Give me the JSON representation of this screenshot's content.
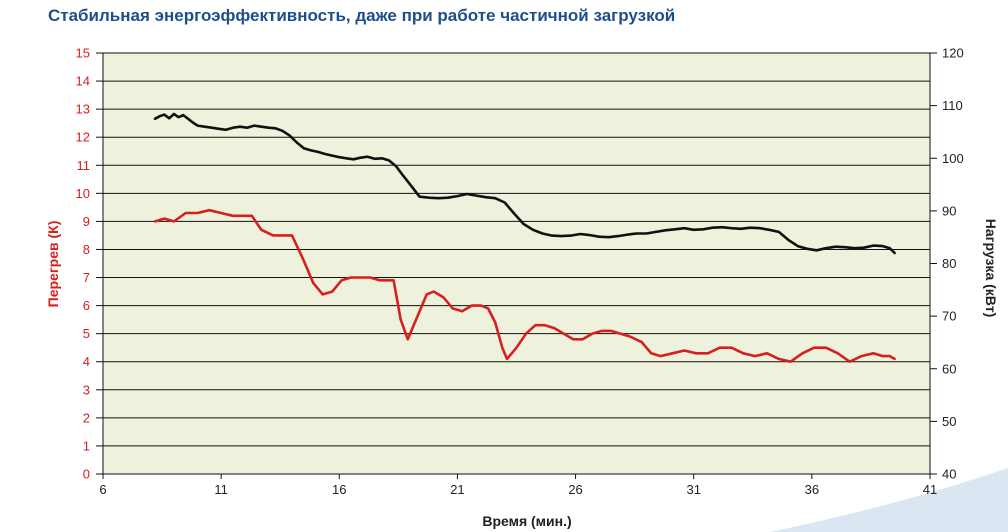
{
  "title": "Стабильная энергоэффективность, даже при работе частичной загрузкой",
  "colors": {
    "plot_bg": "#eef2dc",
    "title": "#1f4e8c",
    "superheat_line": "#d62020",
    "load_line": "#111111",
    "grid": "#111111",
    "corner_decoration": "#dbe6f3"
  },
  "chart_data": {
    "type": "line",
    "title": "Стабильная энергоэффективность, даже при работе частичной загрузкой",
    "xlabel": "Время (мин.)",
    "ylabel_left": "Перегрев (К)",
    "ylabel_right": "Нагрузка (кВт)",
    "xlim": [
      6,
      41
    ],
    "ylim_left": [
      0,
      15
    ],
    "ylim_right": [
      40,
      120
    ],
    "x_ticks": [
      6,
      11,
      16,
      21,
      26,
      31,
      36,
      41
    ],
    "y_left_ticks": [
      0,
      1,
      2,
      3,
      4,
      5,
      6,
      7,
      8,
      9,
      10,
      11,
      12,
      13,
      14,
      15
    ],
    "y_right_ticks": [
      40,
      50,
      60,
      70,
      80,
      90,
      100,
      110,
      120
    ],
    "grid": true,
    "legend": "none",
    "series": [
      {
        "name": "Перегрев (К)",
        "axis": "left",
        "color": "#d62020",
        "x": [
          8.2,
          8.6,
          9.0,
          9.5,
          10.0,
          10.5,
          11.0,
          11.5,
          12.0,
          12.3,
          12.7,
          13.2,
          13.6,
          14.0,
          14.5,
          14.9,
          15.3,
          15.7,
          16.1,
          16.5,
          16.9,
          17.3,
          17.7,
          18.0,
          18.3,
          18.6,
          18.9,
          19.3,
          19.7,
          20.0,
          20.4,
          20.8,
          21.2,
          21.6,
          22.0,
          22.3,
          22.6,
          22.9,
          23.1,
          23.5,
          23.9,
          24.3,
          24.7,
          25.1,
          25.5,
          25.9,
          26.3,
          26.7,
          27.1,
          27.5,
          27.9,
          28.3,
          28.8,
          29.2,
          29.6,
          30.1,
          30.6,
          31.1,
          31.6,
          32.1,
          32.6,
          33.1,
          33.6,
          34.1,
          34.6,
          35.1,
          35.6,
          36.1,
          36.6,
          37.1,
          37.6,
          38.1,
          38.6,
          39.0,
          39.3,
          39.5
        ],
        "values": [
          9.0,
          9.1,
          9.0,
          9.3,
          9.3,
          9.4,
          9.3,
          9.2,
          9.2,
          9.2,
          8.7,
          8.5,
          8.5,
          8.5,
          7.6,
          6.8,
          6.4,
          6.5,
          6.9,
          7.0,
          7.0,
          7.0,
          6.9,
          6.9,
          6.9,
          5.5,
          4.8,
          5.6,
          6.4,
          6.5,
          6.3,
          5.9,
          5.8,
          6.0,
          6.0,
          5.9,
          5.4,
          4.5,
          4.1,
          4.5,
          5.0,
          5.3,
          5.3,
          5.2,
          5.0,
          4.8,
          4.8,
          5.0,
          5.1,
          5.1,
          5.0,
          4.9,
          4.7,
          4.3,
          4.2,
          4.3,
          4.4,
          4.3,
          4.3,
          4.5,
          4.5,
          4.3,
          4.2,
          4.3,
          4.1,
          4.0,
          4.3,
          4.5,
          4.5,
          4.3,
          4.0,
          4.2,
          4.3,
          4.2,
          4.2,
          4.1
        ]
      },
      {
        "name": "Нагрузка (кВт)",
        "axis": "right",
        "color": "#111111",
        "x": [
          8.2,
          8.4,
          8.6,
          8.8,
          9.0,
          9.2,
          9.4,
          9.6,
          9.8,
          10.0,
          10.3,
          10.6,
          10.9,
          11.2,
          11.5,
          11.8,
          12.1,
          12.4,
          12.7,
          13.0,
          13.3,
          13.6,
          13.9,
          14.2,
          14.5,
          14.8,
          15.1,
          15.4,
          15.7,
          16.0,
          16.3,
          16.6,
          16.9,
          17.2,
          17.5,
          17.8,
          18.1,
          18.4,
          18.7,
          19.0,
          19.4,
          19.8,
          20.2,
          20.6,
          21.0,
          21.4,
          21.8,
          22.2,
          22.6,
          23.0,
          23.4,
          23.8,
          24.2,
          24.6,
          25.0,
          25.4,
          25.8,
          26.2,
          26.6,
          27.0,
          27.4,
          27.8,
          28.2,
          28.6,
          29.0,
          29.4,
          29.8,
          30.2,
          30.6,
          31.0,
          31.4,
          31.8,
          32.2,
          32.6,
          33.0,
          33.4,
          33.8,
          34.2,
          34.6,
          35.0,
          35.4,
          35.8,
          36.2,
          36.6,
          37.0,
          37.4,
          37.8,
          38.2,
          38.6,
          39.0,
          39.3,
          39.5
        ],
        "values": [
          107.5,
          108.0,
          108.3,
          107.6,
          108.4,
          107.8,
          108.2,
          107.5,
          106.8,
          106.2,
          106.0,
          105.8,
          105.6,
          105.4,
          105.8,
          106.0,
          105.8,
          106.2,
          106.0,
          105.8,
          105.7,
          105.2,
          104.3,
          103.0,
          101.9,
          101.5,
          101.2,
          100.8,
          100.5,
          100.2,
          100.0,
          99.8,
          100.1,
          100.3,
          99.9,
          100.0,
          99.6,
          98.5,
          96.7,
          95.0,
          92.7,
          92.5,
          92.4,
          92.5,
          92.8,
          93.2,
          92.9,
          92.6,
          92.4,
          91.6,
          89.5,
          87.5,
          86.4,
          85.7,
          85.3,
          85.2,
          85.3,
          85.6,
          85.4,
          85.1,
          85.0,
          85.2,
          85.5,
          85.7,
          85.7,
          86.0,
          86.3,
          86.5,
          86.7,
          86.4,
          86.5,
          86.8,
          86.9,
          86.7,
          86.6,
          86.8,
          86.7,
          86.4,
          86.0,
          84.5,
          83.3,
          82.8,
          82.5,
          82.9,
          83.2,
          83.1,
          82.9,
          83.0,
          83.4,
          83.3,
          82.9,
          82.0
        ]
      }
    ]
  }
}
